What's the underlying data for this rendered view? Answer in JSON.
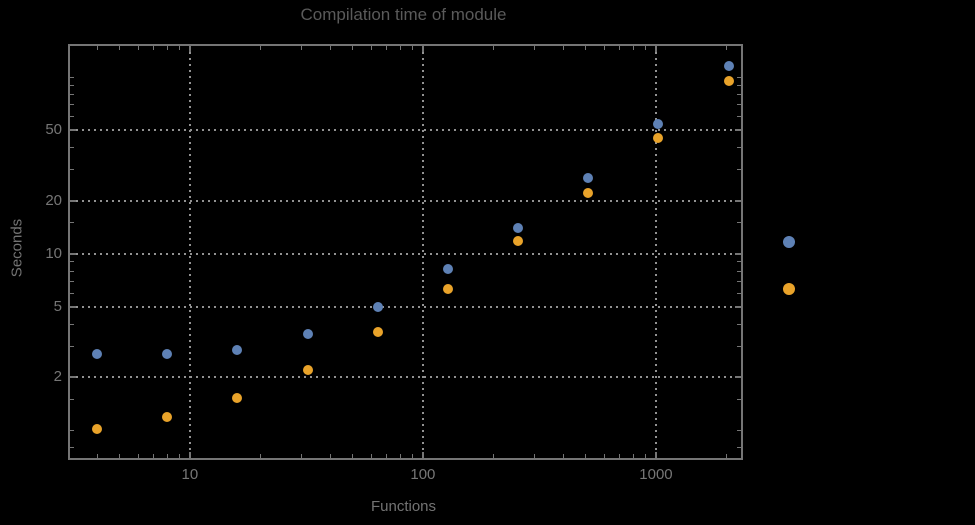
{
  "chart_data": {
    "type": "scatter",
    "title": "Compilation time of module",
    "xlabel": "Functions",
    "ylabel": "Seconds",
    "x_scale": "log",
    "y_scale": "log",
    "x_range": [
      3.06,
      2317
    ],
    "y_range": [
      0.7,
      150
    ],
    "x": [
      4,
      8,
      16,
      32,
      64,
      128,
      256,
      512,
      1024,
      2048
    ],
    "series": [
      {
        "name": "series-1-blue",
        "color": "#5E81B5",
        "values": [
          2.7,
          2.7,
          2.85,
          3.5,
          5.0,
          8.2,
          14,
          27,
          54,
          115
        ]
      },
      {
        "name": "series-2-orange",
        "color": "#E9A32A",
        "values": [
          1.02,
          1.2,
          1.52,
          2.2,
          3.6,
          6.3,
          11.8,
          22,
          45,
          95
        ]
      }
    ],
    "x_axis": {
      "major_ticks": [
        10,
        100,
        1000
      ],
      "major_labels": [
        "10",
        "100",
        "1000"
      ],
      "minor_ticks": [
        4,
        5,
        6,
        7,
        8,
        9,
        20,
        30,
        40,
        50,
        60,
        70,
        80,
        90,
        200,
        300,
        400,
        500,
        600,
        700,
        800,
        900,
        2000
      ]
    },
    "y_axis": {
      "major_ticks": [
        2,
        5,
        10,
        20,
        50
      ],
      "major_labels": [
        "2",
        "5",
        "10",
        "20",
        "50"
      ],
      "minor_ticks": [
        0.8,
        1,
        1.5,
        3,
        4,
        6,
        7,
        8,
        9,
        15,
        30,
        40,
        60,
        70,
        80,
        90,
        100
      ]
    },
    "grid": {
      "x_values": [
        10,
        100,
        1000
      ],
      "y_values": [
        2,
        5,
        10,
        20,
        50
      ],
      "style": "dotted"
    },
    "legend": {
      "position": "right-of-plot",
      "items": [
        {
          "marker_color": "#5E81B5",
          "label": ""
        },
        {
          "marker_color": "#E9A32A",
          "label": ""
        }
      ]
    }
  },
  "colors": {
    "background": "#000000",
    "frame": "#757575",
    "grid": "#929292",
    "tick_text": "#767676",
    "title_text": "#5A5A5A",
    "axis_label_text": "#737373"
  }
}
